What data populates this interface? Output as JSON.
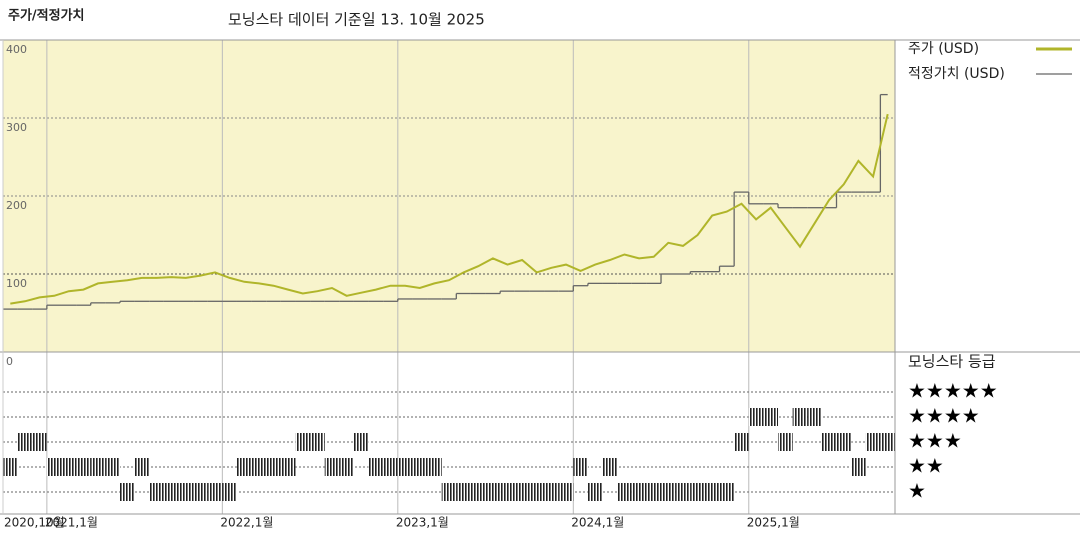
{
  "chart_data": {
    "type": "line",
    "title": "주가/적정가치",
    "subtitle": "모닝스타 데이터 기준일 13. 10월 2025",
    "x": [
      "2020-10",
      "2020-11",
      "2020-12",
      "2021-01",
      "2021-02",
      "2021-03",
      "2021-04",
      "2021-05",
      "2021-06",
      "2021-07",
      "2021-08",
      "2021-09",
      "2021-10",
      "2021-11",
      "2021-12",
      "2022-01",
      "2022-02",
      "2022-03",
      "2022-04",
      "2022-05",
      "2022-06",
      "2022-07",
      "2022-08",
      "2022-09",
      "2022-10",
      "2022-11",
      "2022-12",
      "2023-01",
      "2023-02",
      "2023-03",
      "2023-04",
      "2023-05",
      "2023-06",
      "2023-07",
      "2023-08",
      "2023-09",
      "2023-10",
      "2023-11",
      "2023-12",
      "2024-01",
      "2024-02",
      "2024-03",
      "2024-04",
      "2024-05",
      "2024-06",
      "2024-07",
      "2024-08",
      "2024-09",
      "2024-10",
      "2024-11",
      "2024-12",
      "2025-01",
      "2025-02",
      "2025-03",
      "2025-04",
      "2025-05",
      "2025-06",
      "2025-07",
      "2025-08",
      "2025-09",
      "2025-10"
    ],
    "series": [
      {
        "name": "주가 (USD)",
        "color": "#b0b52a",
        "values": [
          62,
          65,
          70,
          72,
          78,
          80,
          88,
          90,
          92,
          95,
          95,
          96,
          95,
          98,
          102,
          95,
          90,
          88,
          85,
          80,
          75,
          78,
          82,
          72,
          76,
          80,
          85,
          85,
          82,
          88,
          92,
          102,
          110,
          120,
          112,
          118,
          102,
          108,
          112,
          104,
          112,
          118,
          125,
          120,
          122,
          140,
          136,
          150,
          175,
          180,
          190,
          170,
          185,
          160,
          135,
          165,
          195,
          215,
          245,
          225,
          305
        ]
      },
      {
        "name": "적정가치 (USD)",
        "color": "#666666",
        "values": [
          55,
          55,
          55,
          60,
          60,
          60,
          63,
          63,
          65,
          65,
          65,
          65,
          65,
          65,
          65,
          65,
          65,
          65,
          65,
          65,
          65,
          65,
          65,
          65,
          65,
          65,
          65,
          68,
          68,
          68,
          68,
          75,
          75,
          75,
          78,
          78,
          78,
          78,
          78,
          85,
          88,
          88,
          88,
          88,
          88,
          100,
          100,
          103,
          103,
          110,
          205,
          190,
          190,
          185,
          185,
          185,
          185,
          205,
          205,
          205,
          330
        ]
      }
    ],
    "rating": {
      "title": "모닝스타 등급",
      "levels": [
        {
          "value": 5,
          "label": "★★★★★"
        },
        {
          "value": 4,
          "label": "★★★★"
        },
        {
          "value": 3,
          "label": "★★★"
        },
        {
          "value": 2,
          "label": "★★"
        },
        {
          "value": 1,
          "label": "★"
        }
      ],
      "values": [
        2,
        3,
        3,
        2,
        2,
        2,
        2,
        2,
        1,
        2,
        1,
        1,
        1,
        1,
        1,
        1,
        2,
        2,
        2,
        2,
        3,
        3,
        2,
        2,
        3,
        2,
        2,
        2,
        2,
        2,
        1,
        1,
        1,
        1,
        1,
        1,
        1,
        1,
        1,
        2,
        1,
        2,
        1,
        1,
        1,
        1,
        1,
        1,
        1,
        1,
        3,
        4,
        4,
        3,
        4,
        4,
        3,
        3,
        2,
        3,
        3
      ]
    },
    "xlim": [
      "2020-10",
      "2025-11"
    ],
    "xticks": [
      {
        "value": "2020-10",
        "label": "2020,10월"
      },
      {
        "value": "2021-01",
        "label": "2021,1월"
      },
      {
        "value": "2022-01",
        "label": "2022,1월"
      },
      {
        "value": "2023-01",
        "label": "2023,1월"
      },
      {
        "value": "2024-01",
        "label": "2024,1월"
      },
      {
        "value": "2025-01",
        "label": "2025,1월"
      }
    ],
    "ylim": [
      0,
      400
    ],
    "yticks": [
      0,
      100,
      200,
      300,
      400
    ],
    "grid": true
  }
}
